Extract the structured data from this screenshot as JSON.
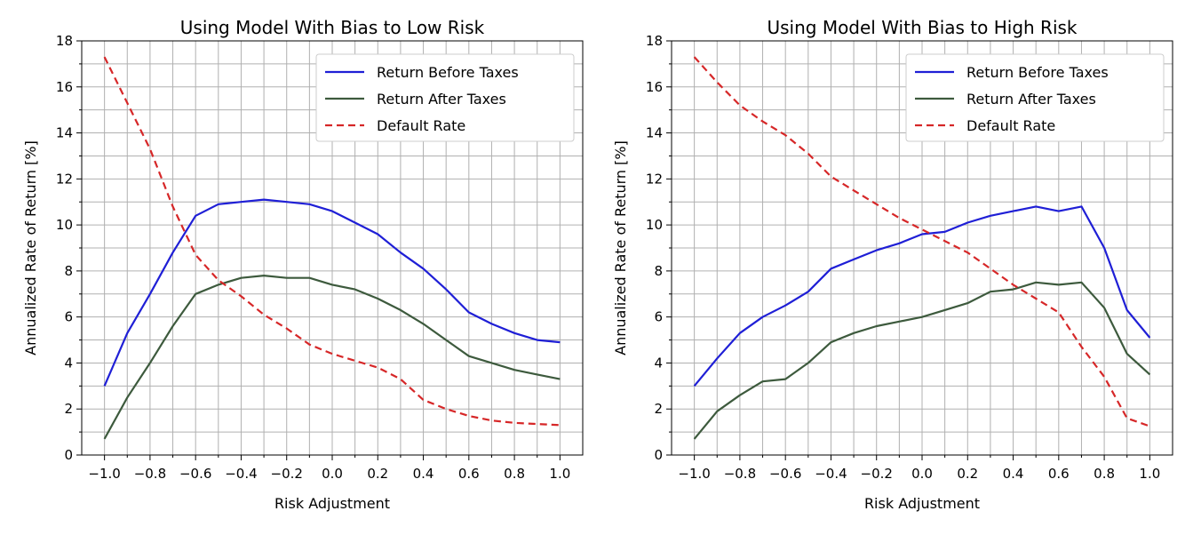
{
  "colors": {
    "before_taxes": "#1f1fd6",
    "after_taxes": "#3d5a3d",
    "default_rate": "#d62728",
    "grid": "#b0b0b0"
  },
  "chart_data": [
    {
      "type": "line",
      "title": "Using Model With Bias to Low Risk",
      "xlabel": "Risk Adjustment",
      "ylabel": "Annualized Rate of Return [%]",
      "xlim": [
        -1.1,
        1.1
      ],
      "ylim": [
        0,
        18
      ],
      "xticks": [
        -1.0,
        -0.8,
        -0.6,
        -0.4,
        -0.2,
        0.0,
        0.2,
        0.4,
        0.6,
        0.8,
        1.0
      ],
      "xtick_labels": [
        "−1.0",
        "−0.8",
        "−0.6",
        "−0.4",
        "−0.2",
        "0.0",
        "0.2",
        "0.4",
        "0.6",
        "0.8",
        "1.0"
      ],
      "yticks": [
        0,
        2,
        4,
        6,
        8,
        10,
        12,
        14,
        16,
        18
      ],
      "ytick_labels": [
        "0",
        "2",
        "4",
        "6",
        "8",
        "10",
        "12",
        "14",
        "16",
        "18"
      ],
      "grid": true,
      "legend_position": "top-right",
      "x": [
        -1.0,
        -0.9,
        -0.8,
        -0.7,
        -0.6,
        -0.5,
        -0.4,
        -0.3,
        -0.2,
        -0.1,
        0.0,
        0.1,
        0.2,
        0.3,
        0.4,
        0.5,
        0.6,
        0.7,
        0.8,
        0.9,
        1.0
      ],
      "series": [
        {
          "name": "Return Before Taxes",
          "style": "solid",
          "color": "#1f1fd6",
          "values": [
            3.0,
            5.3,
            7.0,
            8.8,
            10.4,
            10.9,
            11.0,
            11.1,
            11.0,
            10.9,
            10.6,
            10.1,
            9.6,
            8.8,
            8.1,
            7.2,
            6.2,
            5.7,
            5.3,
            5.0,
            4.9
          ]
        },
        {
          "name": "Return After Taxes",
          "style": "solid",
          "color": "#3d5a3d",
          "values": [
            0.7,
            2.5,
            4.0,
            5.6,
            7.0,
            7.4,
            7.7,
            7.8,
            7.7,
            7.7,
            7.4,
            7.2,
            6.8,
            6.3,
            5.7,
            5.0,
            4.3,
            4.0,
            3.7,
            3.5,
            3.3
          ]
        },
        {
          "name": "Default Rate",
          "style": "dashed",
          "color": "#d62728",
          "values": [
            17.3,
            15.3,
            13.3,
            10.8,
            8.7,
            7.6,
            6.9,
            6.1,
            5.5,
            4.8,
            4.4,
            4.1,
            3.8,
            3.3,
            2.4,
            2.0,
            1.7,
            1.5,
            1.4,
            1.35,
            1.3
          ]
        }
      ]
    },
    {
      "type": "line",
      "title": "Using Model With Bias to High Risk",
      "xlabel": "Risk Adjustment",
      "ylabel": "Annualized Rate of Return [%]",
      "xlim": [
        -1.1,
        1.1
      ],
      "ylim": [
        0,
        18
      ],
      "xticks": [
        -1.0,
        -0.8,
        -0.6,
        -0.4,
        -0.2,
        0.0,
        0.2,
        0.4,
        0.6,
        0.8,
        1.0
      ],
      "xtick_labels": [
        "−1.0",
        "−0.8",
        "−0.6",
        "−0.4",
        "−0.2",
        "0.0",
        "0.2",
        "0.4",
        "0.6",
        "0.8",
        "1.0"
      ],
      "yticks": [
        0,
        2,
        4,
        6,
        8,
        10,
        12,
        14,
        16,
        18
      ],
      "ytick_labels": [
        "0",
        "2",
        "4",
        "6",
        "8",
        "10",
        "12",
        "14",
        "16",
        "18"
      ],
      "grid": true,
      "legend_position": "top-right",
      "x": [
        -1.0,
        -0.9,
        -0.8,
        -0.7,
        -0.6,
        -0.5,
        -0.4,
        -0.3,
        -0.2,
        -0.1,
        0.0,
        0.1,
        0.2,
        0.3,
        0.4,
        0.5,
        0.6,
        0.7,
        0.8,
        0.9,
        1.0
      ],
      "series": [
        {
          "name": "Return Before Taxes",
          "style": "solid",
          "color": "#1f1fd6",
          "values": [
            3.0,
            4.2,
            5.3,
            6.0,
            6.5,
            7.1,
            8.1,
            8.5,
            8.9,
            9.2,
            9.6,
            9.7,
            10.1,
            10.4,
            10.6,
            10.8,
            10.6,
            10.8,
            9.0,
            6.3,
            5.1
          ]
        },
        {
          "name": "Return After Taxes",
          "style": "solid",
          "color": "#3d5a3d",
          "values": [
            0.7,
            1.9,
            2.6,
            3.2,
            3.3,
            4.0,
            4.9,
            5.3,
            5.6,
            5.8,
            6.0,
            6.3,
            6.6,
            7.1,
            7.2,
            7.5,
            7.4,
            7.5,
            6.4,
            4.4,
            3.5
          ]
        },
        {
          "name": "Default Rate",
          "style": "dashed",
          "color": "#d62728",
          "values": [
            17.3,
            16.2,
            15.2,
            14.5,
            13.9,
            13.1,
            12.1,
            11.5,
            10.9,
            10.3,
            9.8,
            9.3,
            8.8,
            8.1,
            7.4,
            6.8,
            6.2,
            4.7,
            3.4,
            1.6,
            1.25
          ]
        }
      ]
    }
  ]
}
